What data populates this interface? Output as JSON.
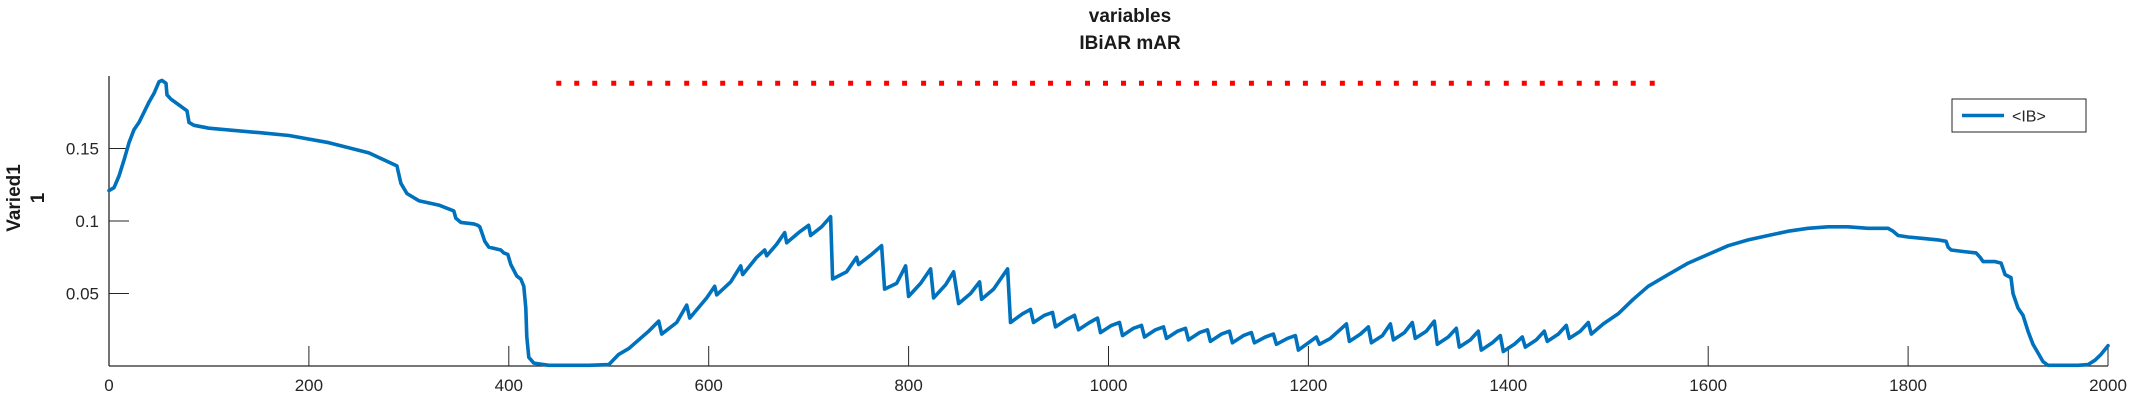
{
  "chart_data": {
    "type": "line",
    "title": [
      "variables",
      "IBiAR mAR"
    ],
    "ylabel": [
      "Varied1",
      "1"
    ],
    "xlabel": "",
    "xlim": [
      0,
      2000
    ],
    "ylim": [
      0,
      0.2
    ],
    "xticks": [
      0,
      200,
      400,
      600,
      800,
      1000,
      1200,
      1400,
      1600,
      1800,
      2000
    ],
    "yticks": [
      0.05,
      0.1,
      0.15
    ],
    "ytick_labels": [
      "0.05",
      "0.1",
      "0.15"
    ],
    "grid": false,
    "legend_position": "top-right",
    "colors": {
      "line": "#0072BD",
      "markers": "#FF0000",
      "axis": "#262626"
    },
    "series": [
      {
        "name": "<IB>",
        "style": "line",
        "points": [
          [
            0,
            0.121
          ],
          [
            5,
            0.123
          ],
          [
            10,
            0.131
          ],
          [
            15,
            0.142
          ],
          [
            20,
            0.154
          ],
          [
            25,
            0.163
          ],
          [
            30,
            0.168
          ],
          [
            35,
            0.175
          ],
          [
            40,
            0.182
          ],
          [
            45,
            0.188
          ],
          [
            50,
            0.196
          ],
          [
            53,
            0.197
          ],
          [
            57,
            0.195
          ],
          [
            58,
            0.187
          ],
          [
            62,
            0.184
          ],
          [
            70,
            0.18
          ],
          [
            78,
            0.176
          ],
          [
            80,
            0.168
          ],
          [
            85,
            0.166
          ],
          [
            100,
            0.164
          ],
          [
            150,
            0.161
          ],
          [
            180,
            0.159
          ],
          [
            220,
            0.154
          ],
          [
            260,
            0.147
          ],
          [
            288,
            0.138
          ],
          [
            290,
            0.132
          ],
          [
            292,
            0.126
          ],
          [
            298,
            0.119
          ],
          [
            310,
            0.114
          ],
          [
            330,
            0.111
          ],
          [
            345,
            0.107
          ],
          [
            347,
            0.102
          ],
          [
            352,
            0.099
          ],
          [
            365,
            0.098
          ],
          [
            369,
            0.097
          ],
          [
            371,
            0.096
          ],
          [
            373,
            0.092
          ],
          [
            376,
            0.086
          ],
          [
            380,
            0.082
          ],
          [
            392,
            0.08
          ],
          [
            395,
            0.078
          ],
          [
            399,
            0.077
          ],
          [
            402,
            0.07
          ],
          [
            408,
            0.062
          ],
          [
            412,
            0.06
          ],
          [
            415,
            0.055
          ],
          [
            417,
            0.04
          ],
          [
            418,
            0.02
          ],
          [
            420,
            0.006
          ],
          [
            425,
            0.002
          ],
          [
            440,
            0.0005
          ],
          [
            480,
            0.0005
          ],
          [
            500,
            0.001
          ],
          [
            510,
            0.008
          ],
          [
            520,
            0.012
          ],
          [
            540,
            0.024
          ],
          [
            550,
            0.031
          ],
          [
            553,
            0.022
          ],
          [
            568,
            0.03
          ],
          [
            578,
            0.042
          ],
          [
            581,
            0.033
          ],
          [
            598,
            0.047
          ],
          [
            606,
            0.055
          ],
          [
            608,
            0.049
          ],
          [
            622,
            0.058
          ],
          [
            632,
            0.069
          ],
          [
            634,
            0.063
          ],
          [
            648,
            0.075
          ],
          [
            656,
            0.08
          ],
          [
            658,
            0.076
          ],
          [
            668,
            0.084
          ],
          [
            676,
            0.092
          ],
          [
            678,
            0.085
          ],
          [
            690,
            0.092
          ],
          [
            700,
            0.097
          ],
          [
            702,
            0.09
          ],
          [
            713,
            0.096
          ],
          [
            722,
            0.103
          ],
          [
            724,
            0.06
          ],
          [
            738,
            0.065
          ],
          [
            748,
            0.075
          ],
          [
            750,
            0.07
          ],
          [
            763,
            0.077
          ],
          [
            773,
            0.083
          ],
          [
            776,
            0.053
          ],
          [
            788,
            0.057
          ],
          [
            797,
            0.069
          ],
          [
            800,
            0.048
          ],
          [
            812,
            0.057
          ],
          [
            822,
            0.067
          ],
          [
            825,
            0.047
          ],
          [
            837,
            0.056
          ],
          [
            845,
            0.065
          ],
          [
            850,
            0.043
          ],
          [
            862,
            0.05
          ],
          [
            871,
            0.058
          ],
          [
            873,
            0.046
          ],
          [
            885,
            0.053
          ],
          [
            895,
            0.063
          ],
          [
            899,
            0.067
          ],
          [
            902,
            0.03
          ],
          [
            914,
            0.036
          ],
          [
            922,
            0.039
          ],
          [
            925,
            0.03
          ],
          [
            936,
            0.035
          ],
          [
            944,
            0.037
          ],
          [
            947,
            0.027
          ],
          [
            958,
            0.032
          ],
          [
            966,
            0.035
          ],
          [
            970,
            0.025
          ],
          [
            981,
            0.03
          ],
          [
            989,
            0.033
          ],
          [
            992,
            0.023
          ],
          [
            1003,
            0.028
          ],
          [
            1011,
            0.03
          ],
          [
            1014,
            0.021
          ],
          [
            1025,
            0.026
          ],
          [
            1033,
            0.028
          ],
          [
            1036,
            0.02
          ],
          [
            1047,
            0.025
          ],
          [
            1055,
            0.027
          ],
          [
            1058,
            0.019
          ],
          [
            1069,
            0.024
          ],
          [
            1077,
            0.026
          ],
          [
            1080,
            0.018
          ],
          [
            1091,
            0.023
          ],
          [
            1099,
            0.025
          ],
          [
            1102,
            0.017
          ],
          [
            1113,
            0.022
          ],
          [
            1121,
            0.024
          ],
          [
            1124,
            0.016
          ],
          [
            1135,
            0.021
          ],
          [
            1143,
            0.023
          ],
          [
            1146,
            0.016
          ],
          [
            1157,
            0.02
          ],
          [
            1165,
            0.022
          ],
          [
            1168,
            0.015
          ],
          [
            1179,
            0.019
          ],
          [
            1187,
            0.021
          ],
          [
            1190,
            0.011
          ],
          [
            1200,
            0.016
          ],
          [
            1208,
            0.02
          ],
          [
            1211,
            0.015
          ],
          [
            1222,
            0.019
          ],
          [
            1230,
            0.024
          ],
          [
            1238,
            0.029
          ],
          [
            1241,
            0.017
          ],
          [
            1252,
            0.022
          ],
          [
            1260,
            0.027
          ],
          [
            1263,
            0.016
          ],
          [
            1274,
            0.021
          ],
          [
            1282,
            0.029
          ],
          [
            1285,
            0.018
          ],
          [
            1296,
            0.023
          ],
          [
            1304,
            0.03
          ],
          [
            1307,
            0.019
          ],
          [
            1318,
            0.024
          ],
          [
            1326,
            0.031
          ],
          [
            1329,
            0.015
          ],
          [
            1340,
            0.02
          ],
          [
            1348,
            0.026
          ],
          [
            1351,
            0.013
          ],
          [
            1362,
            0.018
          ],
          [
            1370,
            0.024
          ],
          [
            1373,
            0.011
          ],
          [
            1384,
            0.016
          ],
          [
            1392,
            0.021
          ],
          [
            1395,
            0.01
          ],
          [
            1406,
            0.015
          ],
          [
            1414,
            0.02
          ],
          [
            1417,
            0.013
          ],
          [
            1428,
            0.018
          ],
          [
            1436,
            0.024
          ],
          [
            1439,
            0.017
          ],
          [
            1450,
            0.022
          ],
          [
            1458,
            0.028
          ],
          [
            1461,
            0.019
          ],
          [
            1472,
            0.024
          ],
          [
            1480,
            0.03
          ],
          [
            1483,
            0.022
          ],
          [
            1495,
            0.029
          ],
          [
            1510,
            0.036
          ],
          [
            1525,
            0.046
          ],
          [
            1540,
            0.055
          ],
          [
            1560,
            0.063
          ],
          [
            1580,
            0.071
          ],
          [
            1600,
            0.077
          ],
          [
            1620,
            0.083
          ],
          [
            1640,
            0.087
          ],
          [
            1660,
            0.09
          ],
          [
            1680,
            0.093
          ],
          [
            1700,
            0.095
          ],
          [
            1720,
            0.096
          ],
          [
            1740,
            0.096
          ],
          [
            1760,
            0.095
          ],
          [
            1780,
            0.095
          ],
          [
            1785,
            0.093
          ],
          [
            1790,
            0.09
          ],
          [
            1800,
            0.089
          ],
          [
            1815,
            0.088
          ],
          [
            1830,
            0.087
          ],
          [
            1838,
            0.086
          ],
          [
            1840,
            0.082
          ],
          [
            1843,
            0.08
          ],
          [
            1855,
            0.079
          ],
          [
            1868,
            0.078
          ],
          [
            1872,
            0.075
          ],
          [
            1875,
            0.072
          ],
          [
            1887,
            0.072
          ],
          [
            1893,
            0.071
          ],
          [
            1897,
            0.063
          ],
          [
            1903,
            0.061
          ],
          [
            1905,
            0.05
          ],
          [
            1910,
            0.04
          ],
          [
            1915,
            0.035
          ],
          [
            1920,
            0.024
          ],
          [
            1925,
            0.015
          ],
          [
            1930,
            0.009
          ],
          [
            1935,
            0.003
          ],
          [
            1940,
            0.0005
          ],
          [
            1970,
            0.0005
          ],
          [
            1980,
            0.001
          ],
          [
            1987,
            0.004
          ],
          [
            1993,
            0.008
          ],
          [
            2000,
            0.014
          ]
        ]
      },
      {
        "style": "dotted-markers",
        "y": 0.195,
        "x": [
          450,
          468,
          486,
          505,
          523,
          541,
          559,
          578,
          596,
          614,
          632,
          651,
          669,
          687,
          705,
          723,
          742,
          760,
          778,
          796,
          815,
          833,
          851,
          869,
          887,
          906,
          924,
          942,
          960,
          979,
          997,
          1015,
          1033,
          1051,
          1070,
          1088,
          1106,
          1124,
          1143,
          1161,
          1179,
          1197,
          1215,
          1234,
          1252,
          1270,
          1288,
          1307,
          1325,
          1343,
          1361,
          1379,
          1398,
          1416,
          1434,
          1452,
          1471,
          1489,
          1507,
          1525,
          1544
        ]
      }
    ],
    "legend": [
      {
        "label": "<IB>",
        "color": "#0072BD"
      }
    ]
  }
}
